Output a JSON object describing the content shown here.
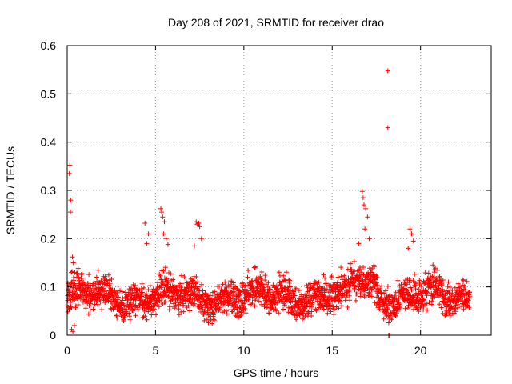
{
  "chart_data": {
    "type": "scatter",
    "title": "Day 208 of 2021, SRMTID for receiver drao",
    "xlabel": "GPS time / hours",
    "ylabel": "SRMTID / TECUs",
    "xlim": [
      0,
      24
    ],
    "ylim": [
      0,
      0.6
    ],
    "xticks": [
      0,
      5,
      10,
      15,
      20
    ],
    "xtick_labels": [
      "0",
      "5",
      "10",
      "15",
      "20"
    ],
    "yticks": [
      0,
      0.1,
      0.2,
      0.3,
      0.4,
      0.5,
      0.6
    ],
    "ytick_labels": [
      "0",
      "0.1",
      "0.2",
      "0.3",
      "0.4",
      "0.5",
      "0.6"
    ],
    "grid": true,
    "marker": "+",
    "color": "#ff0000",
    "outliers": [
      {
        "x": 0.15,
        "y": 0.352
      },
      {
        "x": 0.12,
        "y": 0.335
      },
      {
        "x": 0.2,
        "y": 0.28
      },
      {
        "x": 0.18,
        "y": 0.255
      },
      {
        "x": 0.3,
        "y": 0.162
      },
      {
        "x": 0.35,
        "y": 0.15
      },
      {
        "x": 0.25,
        "y": 0.012
      },
      {
        "x": 0.32,
        "y": 0.008
      },
      {
        "x": 0.4,
        "y": 0.02
      },
      {
        "x": 4.4,
        "y": 0.232
      },
      {
        "x": 4.6,
        "y": 0.21
      },
      {
        "x": 4.5,
        "y": 0.19
      },
      {
        "x": 5.3,
        "y": 0.262
      },
      {
        "x": 5.35,
        "y": 0.255
      },
      {
        "x": 5.4,
        "y": 0.245
      },
      {
        "x": 5.5,
        "y": 0.235
      },
      {
        "x": 5.45,
        "y": 0.21
      },
      {
        "x": 5.6,
        "y": 0.2
      },
      {
        "x": 5.7,
        "y": 0.188
      },
      {
        "x": 7.3,
        "y": 0.235
      },
      {
        "x": 7.35,
        "y": 0.23
      },
      {
        "x": 7.45,
        "y": 0.232
      },
      {
        "x": 7.5,
        "y": 0.225
      },
      {
        "x": 7.6,
        "y": 0.2
      },
      {
        "x": 7.2,
        "y": 0.185
      },
      {
        "x": 16.7,
        "y": 0.298
      },
      {
        "x": 16.75,
        "y": 0.285
      },
      {
        "x": 16.8,
        "y": 0.27
      },
      {
        "x": 16.9,
        "y": 0.262
      },
      {
        "x": 17.0,
        "y": 0.245
      },
      {
        "x": 16.85,
        "y": 0.22
      },
      {
        "x": 17.1,
        "y": 0.2
      },
      {
        "x": 16.5,
        "y": 0.19
      },
      {
        "x": 18.15,
        "y": 0.548
      },
      {
        "x": 18.15,
        "y": 0.43
      },
      {
        "x": 18.2,
        "y": 0.0
      },
      {
        "x": 18.25,
        "y": 0.0
      },
      {
        "x": 19.4,
        "y": 0.22
      },
      {
        "x": 19.5,
        "y": 0.21
      },
      {
        "x": 19.6,
        "y": 0.195
      },
      {
        "x": 19.3,
        "y": 0.18
      }
    ],
    "series": [
      {
        "name": "drao",
        "x_range": [
          0,
          22.8
        ],
        "typical_range": [
          0.03,
          0.13
        ],
        "points_per_hour": 100
      }
    ]
  }
}
